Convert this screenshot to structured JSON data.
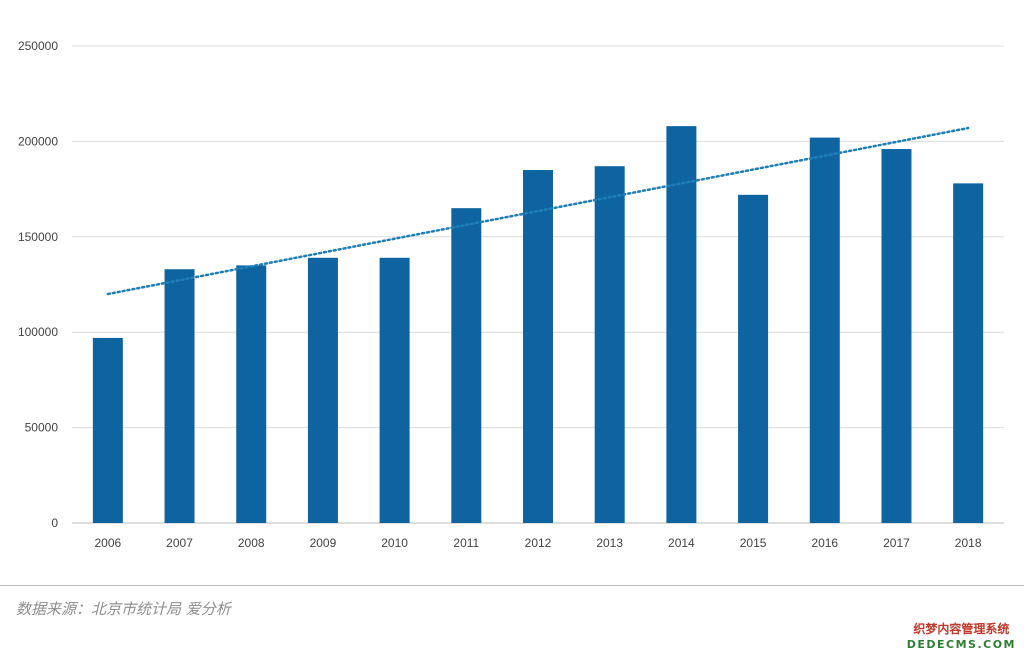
{
  "chart_data": {
    "type": "bar",
    "categories": [
      "2006",
      "2007",
      "2008",
      "2009",
      "2010",
      "2011",
      "2012",
      "2013",
      "2014",
      "2015",
      "2016",
      "2017",
      "2018"
    ],
    "values": [
      97000,
      133000,
      135000,
      139000,
      139000,
      165000,
      185000,
      187000,
      208000,
      172000,
      202000,
      196000,
      178000
    ],
    "trendline": {
      "type": "linear",
      "style": "dotted",
      "start": 120000,
      "end": 207000
    },
    "ylim": [
      0,
      250000
    ],
    "yticks": [
      "0",
      "50000",
      "100000",
      "150000",
      "200000",
      "250000"
    ],
    "grid": true,
    "colors": {
      "bar": "#0e64a0",
      "trendline": "#1f7fb6",
      "grid": "#dcdcdc"
    }
  },
  "source": "数据来源：北京市统计局  爱分析",
  "watermark": {
    "line1": "织梦内容管理系统",
    "line2": "DEDECMS.COM"
  }
}
